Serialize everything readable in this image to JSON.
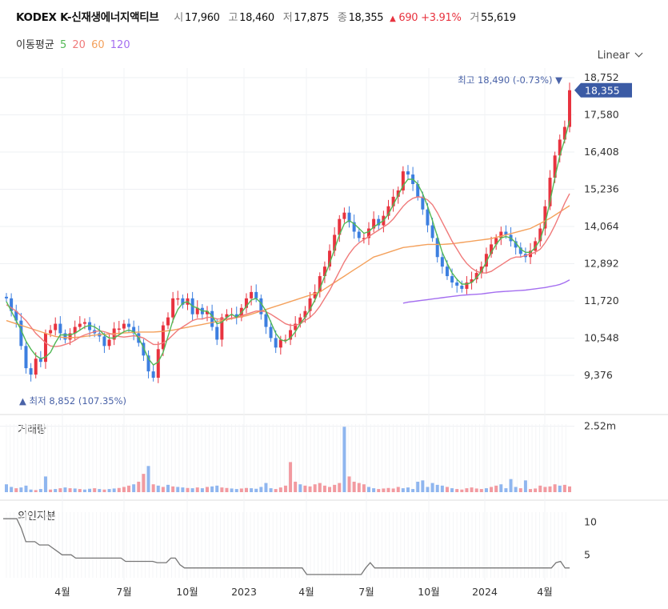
{
  "header": {
    "name": "KODEX K-신재생에너지액티브",
    "open_label": "시",
    "open": "17,960",
    "high_label": "고",
    "high": "18,460",
    "low_label": "저",
    "low": "17,875",
    "close_label": "종",
    "close": "18,355",
    "change_arrow": "▲",
    "change": "690",
    "change_pct": "+3.91%",
    "volume_label": "거",
    "volume": "55,619"
  },
  "ma_legend": {
    "label": "이동평균",
    "periods": [
      "5",
      "20",
      "60",
      "120"
    ],
    "colors": [
      "#52b855",
      "#f07a7a",
      "#f4a15c",
      "#a46ef0"
    ]
  },
  "scale_selector": {
    "label": "Linear",
    "icon": "chevron-down-icon"
  },
  "panels": {
    "volume_label": "거래량",
    "foreign_label": "외인지분"
  },
  "price_axis_ticks": [
    "18,752",
    "17,580",
    "16,408",
    "15,236",
    "14,064",
    "12,892",
    "11,720",
    "10,548",
    "9,376"
  ],
  "volume_axis_tick": "2.52m",
  "foreign_axis_ticks": [
    "10",
    "5"
  ],
  "x_axis_ticks": [
    "4월",
    "7월",
    "10월",
    "2023",
    "4월",
    "7월",
    "10월",
    "2024",
    "4월"
  ],
  "annotations": {
    "high": {
      "arrow": "▼",
      "label": "최고",
      "value": "18,490 (-0.73%)"
    },
    "low": {
      "arrow": "▲",
      "label": "최저",
      "value": "8,852 (107.35%)"
    },
    "current_price": "18,355"
  },
  "colors": {
    "up": "#e8333f",
    "down": "#3d7fe0",
    "current_tag": "#3b5ba5"
  },
  "chart_data": [
    {
      "type": "candlestick",
      "title": "KODEX K-신재생에너지액티브",
      "y_range": [
        8800,
        19000
      ],
      "x_ticks": [
        "4월",
        "7월",
        "10월",
        "2023",
        "4월",
        "7월",
        "10월",
        "2024",
        "4월"
      ],
      "close_series": [
        11800,
        11400,
        11100,
        10300,
        9600,
        9400,
        9900,
        9800,
        10700,
        10800,
        11000,
        10700,
        10500,
        10700,
        10900,
        11000,
        11050,
        10800,
        10700,
        10600,
        10300,
        10500,
        10850,
        10850,
        11000,
        10900,
        10700,
        10400,
        10000,
        9500,
        9300,
        10200,
        10950,
        11200,
        11800,
        11800,
        11600,
        11800,
        11300,
        11500,
        11300,
        11400,
        10900,
        10500,
        11200,
        11300,
        11300,
        11200,
        11500,
        11800,
        12000,
        11800,
        11300,
        10900,
        10550,
        10250,
        10500,
        10500,
        10800,
        11000,
        11200,
        11400,
        11800,
        12000,
        12500,
        12800,
        13300,
        13800,
        14300,
        14500,
        14200,
        13900,
        13700,
        13700,
        14000,
        14300,
        14100,
        14400,
        14700,
        15000,
        15200,
        15800,
        15700,
        15400,
        15000,
        14600,
        14100,
        13700,
        13100,
        12800,
        12500,
        12300,
        12200,
        12100,
        12300,
        12400,
        12600,
        12800,
        13200,
        13500,
        13700,
        13900,
        13800,
        13600,
        13400,
        13200,
        13100,
        13300,
        13600,
        14000,
        14700,
        15600,
        16300,
        16800,
        17200,
        18355
      ],
      "ma5": [
        11700,
        11400,
        11100,
        10800,
        10450,
        10200,
        10000,
        9900,
        9950,
        10100,
        10400,
        10650,
        10650,
        10650,
        10700,
        10800,
        10900,
        10950,
        10900,
        10800,
        10650,
        10550,
        10550,
        10650,
        10750,
        10800,
        10750,
        10550,
        10250,
        9900,
        9700,
        9800,
        10100,
        10600,
        11100,
        11450,
        11650,
        11700,
        11550,
        11500,
        11400,
        11400,
        11250,
        11000,
        11050,
        11200,
        11300,
        11200,
        11350,
        11550,
        11750,
        11800,
        11650,
        11400,
        11050,
        10700,
        10500,
        10450,
        10550,
        10750,
        11000,
        11200,
        11450,
        11750,
        12100,
        12500,
        12900,
        13350,
        13800,
        14150,
        14250,
        14150,
        14000,
        13850,
        13900,
        14050,
        14150,
        14250,
        14450,
        14750,
        15050,
        15350,
        15550,
        15550,
        15400,
        15100,
        14700,
        14250,
        13750,
        13250,
        12900,
        12600,
        12400,
        12250,
        12250,
        12300,
        12450,
        12650,
        12950,
        13250,
        13500,
        13700,
        13750,
        13700,
        13550,
        13350,
        13250,
        13250,
        13400,
        13650,
        14150,
        14850,
        15600,
        16300,
        16800,
        17400
      ],
      "ma20": [
        11600,
        11500,
        11400,
        11250,
        11100,
        10900,
        10700,
        10550,
        10400,
        10300,
        10280,
        10300,
        10350,
        10400,
        10480,
        10580,
        10650,
        10700,
        10750,
        10780,
        10750,
        10700,
        10650,
        10600,
        10580,
        10600,
        10620,
        10600,
        10550,
        10450,
        10350,
        10350,
        10400,
        10500,
        10650,
        10800,
        10900,
        11000,
        11100,
        11150,
        11150,
        11200,
        11200,
        11150,
        11150,
        11150,
        11180,
        11200,
        11250,
        11300,
        11350,
        11400,
        11400,
        11380,
        11300,
        11200,
        11100,
        11000,
        10950,
        10950,
        11000,
        11100,
        11200,
        11350,
        11550,
        11800,
        12050,
        12350,
        12650,
        12950,
        13200,
        13400,
        13550,
        13650,
        13750,
        13850,
        13950,
        14050,
        14150,
        14300,
        14500,
        14700,
        14850,
        14950,
        15000,
        14980,
        14900,
        14750,
        14500,
        14200,
        13900,
        13600,
        13350,
        13100,
        12900,
        12750,
        12650,
        12600,
        12600,
        12650,
        12750,
        12850,
        12950,
        13050,
        13100,
        13100,
        13150,
        13200,
        13250,
        13350,
        13550,
        13800,
        14100,
        14450,
        14800,
        15100
      ],
      "ma60": [
        11100,
        11050,
        11000,
        10950,
        10900,
        10850,
        10800,
        10750,
        10700,
        10650,
        10600,
        10580,
        10560,
        10560,
        10570,
        10580,
        10600,
        10620,
        10640,
        10660,
        10670,
        10680,
        10690,
        10700,
        10710,
        10720,
        10730,
        10740,
        10740,
        10740,
        10740,
        10750,
        10760,
        10780,
        10800,
        10830,
        10860,
        10890,
        10920,
        10950,
        10980,
        11010,
        11040,
        11070,
        11100,
        11130,
        11160,
        11190,
        11220,
        11250,
        11300,
        11350,
        11400,
        11450,
        11500,
        11550,
        11600,
        11650,
        11700,
        11750,
        11800,
        11850,
        11900,
        11950,
        12000,
        12100,
        12200,
        12300,
        12400,
        12500,
        12600,
        12700,
        12800,
        12900,
        13000,
        13100,
        13150,
        13200,
        13250,
        13300,
        13350,
        13400,
        13420,
        13440,
        13460,
        13480,
        13500,
        13500,
        13500,
        13500,
        13510,
        13520,
        13540,
        13560,
        13580,
        13600,
        13620,
        13640,
        13660,
        13680,
        13720,
        13760,
        13800,
        13840,
        13880,
        13920,
        13960,
        14000,
        14080,
        14160,
        14240,
        14320,
        14420,
        14520,
        14620,
        14720
      ],
      "ma120": [
        null,
        null,
        null,
        null,
        null,
        null,
        null,
        null,
        null,
        null,
        null,
        null,
        null,
        null,
        null,
        null,
        null,
        null,
        null,
        null,
        null,
        null,
        null,
        null,
        null,
        null,
        null,
        null,
        null,
        null,
        null,
        null,
        null,
        null,
        null,
        null,
        null,
        null,
        null,
        null,
        null,
        null,
        null,
        null,
        null,
        null,
        null,
        null,
        null,
        null,
        null,
        null,
        null,
        null,
        null,
        null,
        null,
        null,
        null,
        null,
        null,
        null,
        null,
        null,
        null,
        null,
        null,
        null,
        null,
        null,
        null,
        null,
        null,
        null,
        null,
        null,
        null,
        null,
        null,
        null,
        null,
        11650,
        11680,
        11700,
        11720,
        11740,
        11760,
        11780,
        11800,
        11820,
        11840,
        11860,
        11880,
        11900,
        11910,
        11920,
        11930,
        11940,
        11960,
        11980,
        12000,
        12010,
        12020,
        12030,
        12040,
        12050,
        12060,
        12080,
        12100,
        12120,
        12140,
        12170,
        12200,
        12240,
        12300,
        12380
      ]
    },
    {
      "type": "bar",
      "title": "거래량",
      "y_ticks": [
        "2.52m"
      ],
      "values": [
        0.3,
        0.2,
        0.15,
        0.18,
        0.25,
        0.1,
        0.08,
        0.12,
        0.6,
        0.1,
        0.12,
        0.15,
        0.18,
        0.15,
        0.14,
        0.12,
        0.1,
        0.13,
        0.15,
        0.12,
        0.1,
        0.12,
        0.14,
        0.16,
        0.2,
        0.25,
        0.3,
        0.4,
        0.7,
        1.0,
        0.3,
        0.25,
        0.2,
        0.28,
        0.22,
        0.2,
        0.18,
        0.16,
        0.15,
        0.18,
        0.15,
        0.2,
        0.22,
        0.25,
        0.18,
        0.16,
        0.14,
        0.12,
        0.14,
        0.16,
        0.15,
        0.13,
        0.2,
        0.35,
        0.15,
        0.12,
        0.18,
        0.25,
        1.15,
        0.4,
        0.3,
        0.25,
        0.22,
        0.3,
        0.35,
        0.25,
        0.2,
        0.28,
        0.35,
        2.5,
        0.6,
        0.4,
        0.35,
        0.3,
        0.2,
        0.15,
        0.12,
        0.14,
        0.16,
        0.14,
        0.2,
        0.15,
        0.18,
        0.12,
        0.4,
        0.45,
        0.2,
        0.35,
        0.28,
        0.25,
        0.2,
        0.15,
        0.12,
        0.1,
        0.15,
        0.18,
        0.14,
        0.12,
        0.15,
        0.2,
        0.25,
        0.3,
        0.15,
        0.5,
        0.2,
        0.15,
        0.45,
        0.12,
        0.14,
        0.25,
        0.2,
        0.22,
        0.3,
        0.25,
        0.28,
        0.22
      ],
      "up": [
        false,
        false,
        true,
        false,
        false,
        false,
        true,
        false,
        false,
        true,
        false,
        true,
        false,
        true,
        false,
        true,
        false,
        false,
        true,
        false,
        true,
        false,
        false,
        true,
        true,
        true,
        false,
        true,
        true,
        false,
        true,
        false,
        true,
        false,
        true,
        false,
        false,
        true,
        false,
        true,
        false,
        true,
        false,
        false,
        true,
        true,
        false,
        false,
        true,
        true,
        false,
        false,
        false,
        false,
        false,
        true,
        true,
        true,
        true,
        true,
        false,
        true,
        true,
        true,
        true,
        true,
        true,
        true,
        true,
        false,
        true,
        true,
        true,
        true,
        false,
        false,
        true,
        true,
        true,
        true,
        true,
        false,
        false,
        false,
        false,
        false,
        false,
        false,
        false,
        false,
        true,
        false,
        true,
        true,
        true,
        true,
        true,
        true,
        false,
        true,
        true,
        false,
        false,
        false,
        false,
        true,
        false,
        true,
        true,
        true,
        true,
        true,
        true,
        false,
        true,
        true
      ]
    },
    {
      "type": "line",
      "title": "외인지분",
      "y_ticks": [
        "10",
        "5"
      ],
      "values": [
        10.5,
        10.5,
        10.5,
        10.5,
        9.0,
        7.0,
        7.0,
        7.0,
        6.5,
        6.5,
        6.5,
        6.0,
        5.5,
        5.0,
        5.0,
        5.0,
        4.5,
        4.5,
        4.5,
        4.5,
        4.5,
        4.5,
        4.5,
        4.5,
        4.5,
        4.5,
        4.5,
        4.0,
        4.0,
        4.0,
        4.0,
        4.0,
        4.0,
        4.0,
        3.8,
        3.8,
        3.8,
        4.5,
        4.5,
        3.5,
        3.0,
        3.0,
        3.0,
        3.0,
        3.0,
        3.0,
        3.0,
        3.0,
        3.0,
        3.0,
        3.0,
        3.0,
        3.0,
        3.0,
        3.0,
        3.0,
        3.0,
        3.0,
        3.0,
        3.0,
        3.0,
        3.0,
        3.0,
        3.0,
        3.0,
        3.0,
        3.0,
        2.0,
        2.0,
        2.0,
        2.0,
        2.0,
        2.0,
        2.0,
        2.0,
        2.0,
        2.0,
        2.0,
        2.0,
        2.0,
        3.0,
        3.8,
        3.0,
        3.0,
        3.0,
        3.0,
        3.0,
        3.0,
        3.0,
        3.0,
        3.0,
        3.0,
        3.0,
        3.0,
        3.0,
        3.0,
        3.0,
        3.0,
        3.0,
        3.0,
        3.0,
        3.0,
        3.0,
        3.0,
        3.0,
        3.0,
        3.0,
        3.0,
        3.0,
        3.0,
        3.0,
        3.0,
        3.0,
        3.0,
        3.0,
        3.0,
        3.0,
        3.0,
        3.0,
        3.0,
        3.0,
        3.0,
        3.8,
        4.0,
        3.0,
        3.0
      ],
      "y_range": [
        1.5,
        11.5
      ]
    }
  ]
}
